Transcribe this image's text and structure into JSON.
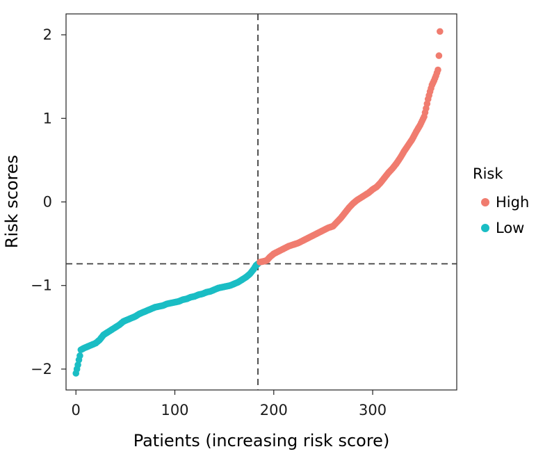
{
  "chart_data": {
    "type": "scatter",
    "title": "",
    "xlabel": "Patients (increasing risk score)",
    "ylabel": "Risk scores",
    "xlim": [
      -10,
      385
    ],
    "ylim": [
      -2.25,
      2.25
    ],
    "xticks": [
      0,
      100,
      200,
      300
    ],
    "xtick_labels": [
      "0",
      "100",
      "200",
      "300"
    ],
    "yticks": [
      -2,
      -1,
      0,
      1,
      2
    ],
    "ytick_labels": [
      "−2",
      "−1",
      "0",
      "1",
      "2"
    ],
    "grid": false,
    "cutoff_x": 184,
    "cutoff_y": -0.74,
    "legend": {
      "title": "Risk",
      "position": "right",
      "entries": [
        {
          "label": "High",
          "color": "#F07C6F"
        },
        {
          "label": "Low",
          "color": "#1ABDC4"
        }
      ]
    },
    "series": [
      {
        "name": "Low",
        "color": "#1ABDC4",
        "points": [
          [
            0,
            -2.05
          ],
          [
            2,
            -1.95
          ],
          [
            3,
            -1.89
          ],
          [
            4,
            -1.84
          ],
          [
            5,
            -1.77
          ],
          [
            8,
            -1.75
          ],
          [
            12,
            -1.73
          ],
          [
            16,
            -1.71
          ],
          [
            20,
            -1.69
          ],
          [
            24,
            -1.65
          ],
          [
            28,
            -1.59
          ],
          [
            32,
            -1.56
          ],
          [
            36,
            -1.53
          ],
          [
            40,
            -1.5
          ],
          [
            44,
            -1.47
          ],
          [
            48,
            -1.43
          ],
          [
            52,
            -1.41
          ],
          [
            56,
            -1.39
          ],
          [
            60,
            -1.37
          ],
          [
            64,
            -1.34
          ],
          [
            68,
            -1.32
          ],
          [
            72,
            -1.3
          ],
          [
            76,
            -1.28
          ],
          [
            80,
            -1.26
          ],
          [
            84,
            -1.25
          ],
          [
            88,
            -1.24
          ],
          [
            92,
            -1.22
          ],
          [
            96,
            -1.21
          ],
          [
            100,
            -1.2
          ],
          [
            104,
            -1.19
          ],
          [
            108,
            -1.17
          ],
          [
            112,
            -1.16
          ],
          [
            116,
            -1.14
          ],
          [
            120,
            -1.13
          ],
          [
            124,
            -1.11
          ],
          [
            128,
            -1.1
          ],
          [
            132,
            -1.08
          ],
          [
            136,
            -1.07
          ],
          [
            140,
            -1.05
          ],
          [
            144,
            -1.03
          ],
          [
            148,
            -1.02
          ],
          [
            152,
            -1.01
          ],
          [
            156,
            -1.0
          ],
          [
            160,
            -0.98
          ],
          [
            164,
            -0.96
          ],
          [
            168,
            -0.93
          ],
          [
            172,
            -0.9
          ],
          [
            176,
            -0.86
          ],
          [
            178,
            -0.83
          ],
          [
            180,
            -0.8
          ],
          [
            182,
            -0.76
          ],
          [
            184,
            -0.74
          ]
        ]
      },
      {
        "name": "High",
        "color": "#F07C6F",
        "points": [
          [
            186,
            -0.72
          ],
          [
            190,
            -0.71
          ],
          [
            193,
            -0.7
          ],
          [
            196,
            -0.66
          ],
          [
            200,
            -0.62
          ],
          [
            205,
            -0.59
          ],
          [
            210,
            -0.56
          ],
          [
            215,
            -0.53
          ],
          [
            220,
            -0.51
          ],
          [
            225,
            -0.49
          ],
          [
            230,
            -0.46
          ],
          [
            235,
            -0.43
          ],
          [
            240,
            -0.4
          ],
          [
            245,
            -0.37
          ],
          [
            250,
            -0.34
          ],
          [
            255,
            -0.31
          ],
          [
            260,
            -0.29
          ],
          [
            264,
            -0.24
          ],
          [
            268,
            -0.19
          ],
          [
            272,
            -0.13
          ],
          [
            276,
            -0.07
          ],
          [
            280,
            -0.02
          ],
          [
            284,
            0.02
          ],
          [
            288,
            0.05
          ],
          [
            292,
            0.08
          ],
          [
            296,
            0.11
          ],
          [
            300,
            0.15
          ],
          [
            304,
            0.18
          ],
          [
            308,
            0.23
          ],
          [
            312,
            0.29
          ],
          [
            316,
            0.35
          ],
          [
            320,
            0.4
          ],
          [
            324,
            0.46
          ],
          [
            328,
            0.53
          ],
          [
            332,
            0.61
          ],
          [
            336,
            0.68
          ],
          [
            340,
            0.75
          ],
          [
            344,
            0.84
          ],
          [
            348,
            0.92
          ],
          [
            352,
            1.02
          ],
          [
            354,
            1.12
          ],
          [
            356,
            1.23
          ],
          [
            358,
            1.32
          ],
          [
            360,
            1.4
          ],
          [
            362,
            1.45
          ],
          [
            364,
            1.51
          ],
          [
            366,
            1.58
          ],
          [
            367,
            1.75
          ],
          [
            368,
            2.04
          ]
        ]
      }
    ]
  }
}
